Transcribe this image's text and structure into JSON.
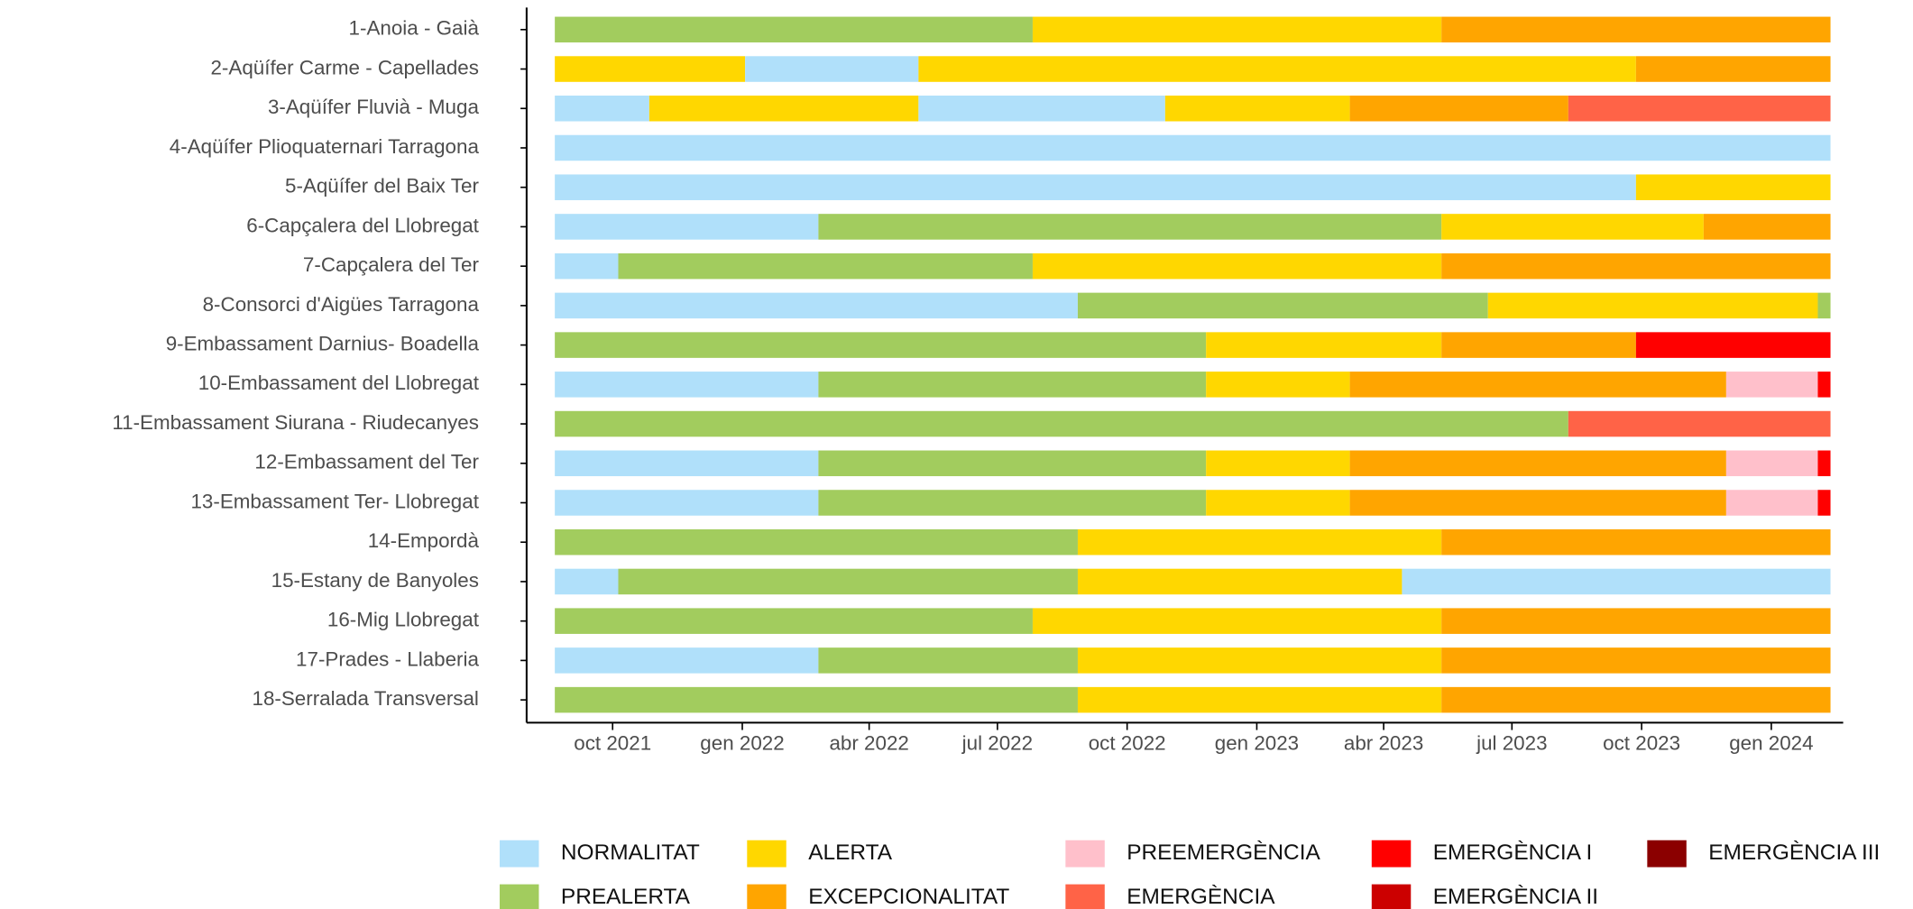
{
  "chart_data": {
    "type": "timeline",
    "states": [
      {
        "name": "NORMALITAT",
        "color": "#b0e0fa"
      },
      {
        "name": "PREALERTA",
        "color": "#a2cc5e"
      },
      {
        "name": "ALERTA",
        "color": "#ffd700"
      },
      {
        "name": "EXCEPCIONALITAT",
        "color": "#ffa500"
      },
      {
        "name": "PREEMERGÈNCIA",
        "color": "#ffc0cb"
      },
      {
        "name": "EMERGÈNCIA",
        "color": "#ff6347"
      },
      {
        "name": "EMERGÈNCIA I",
        "color": "#ff0000"
      },
      {
        "name": "EMERGÈNCIA II",
        "color": "#cc0000"
      },
      {
        "name": "EMERGÈNCIA III",
        "color": "#8b0000"
      }
    ],
    "xlim": [
      "2021-08-01",
      "2024-02-21"
    ],
    "xticks": [
      {
        "value": "2021-10-01",
        "label": "oct 2021"
      },
      {
        "value": "2022-01-01",
        "label": "gen 2022"
      },
      {
        "value": "2022-04-01",
        "label": "abr 2022"
      },
      {
        "value": "2022-07-01",
        "label": "jul 2022"
      },
      {
        "value": "2022-10-01",
        "label": "oct 2022"
      },
      {
        "value": "2023-01-01",
        "label": "gen 2023"
      },
      {
        "value": "2023-04-01",
        "label": "abr 2023"
      },
      {
        "value": "2023-07-01",
        "label": "jul 2023"
      },
      {
        "value": "2023-10-01",
        "label": "oct 2023"
      },
      {
        "value": "2024-01-01",
        "label": "gen 2024"
      }
    ],
    "rows": [
      {
        "name": "1-Anoia - Gaià",
        "segments": [
          {
            "state": "PREALERTA",
            "start": "2021-08-21",
            "end": "2022-07-26"
          },
          {
            "state": "ALERTA",
            "start": "2022-07-26",
            "end": "2023-05-12"
          },
          {
            "state": "EXCEPCIONALITAT",
            "start": "2023-05-12",
            "end": "2024-02-12"
          }
        ]
      },
      {
        "name": "2-Aqüífer Carme - Capellades",
        "segments": [
          {
            "state": "ALERTA",
            "start": "2021-08-21",
            "end": "2022-01-03"
          },
          {
            "state": "NORMALITAT",
            "start": "2022-01-03",
            "end": "2022-05-06"
          },
          {
            "state": "ALERTA",
            "start": "2022-05-06",
            "end": "2023-09-27"
          },
          {
            "state": "EXCEPCIONALITAT",
            "start": "2023-09-27",
            "end": "2024-02-12"
          }
        ]
      },
      {
        "name": "3-Aqüífer Fluvià - Muga",
        "segments": [
          {
            "state": "NORMALITAT",
            "start": "2021-08-21",
            "end": "2021-10-27"
          },
          {
            "state": "ALERTA",
            "start": "2021-10-27",
            "end": "2022-05-06"
          },
          {
            "state": "NORMALITAT",
            "start": "2022-05-06",
            "end": "2022-10-28"
          },
          {
            "state": "ALERTA",
            "start": "2022-10-28",
            "end": "2023-03-08"
          },
          {
            "state": "EXCEPCIONALITAT",
            "start": "2023-03-08",
            "end": "2023-08-10"
          },
          {
            "state": "EMERGÈNCIA",
            "start": "2023-08-10",
            "end": "2024-02-12"
          }
        ]
      },
      {
        "name": "4-Aqüífer Plioquaternari Tarragona",
        "segments": [
          {
            "state": "NORMALITAT",
            "start": "2021-08-21",
            "end": "2024-02-12"
          }
        ]
      },
      {
        "name": "5-Aqüífer del Baix Ter",
        "segments": [
          {
            "state": "NORMALITAT",
            "start": "2021-08-21",
            "end": "2023-09-27"
          },
          {
            "state": "ALERTA",
            "start": "2023-09-27",
            "end": "2024-02-12"
          }
        ]
      },
      {
        "name": "6-Capçalera del Llobregat",
        "segments": [
          {
            "state": "NORMALITAT",
            "start": "2021-08-21",
            "end": "2022-02-24"
          },
          {
            "state": "PREALERTA",
            "start": "2022-02-24",
            "end": "2023-05-12"
          },
          {
            "state": "ALERTA",
            "start": "2023-05-12",
            "end": "2023-11-14"
          },
          {
            "state": "EXCEPCIONALITAT",
            "start": "2023-11-14",
            "end": "2024-02-12"
          }
        ]
      },
      {
        "name": "7-Capçalera del Ter",
        "segments": [
          {
            "state": "NORMALITAT",
            "start": "2021-08-21",
            "end": "2021-10-05"
          },
          {
            "state": "PREALERTA",
            "start": "2021-10-05",
            "end": "2022-07-26"
          },
          {
            "state": "ALERTA",
            "start": "2022-07-26",
            "end": "2023-05-12"
          },
          {
            "state": "EXCEPCIONALITAT",
            "start": "2023-05-12",
            "end": "2024-02-12"
          }
        ]
      },
      {
        "name": "8-Consorci d'Aigües Tarragona",
        "segments": [
          {
            "state": "NORMALITAT",
            "start": "2021-08-21",
            "end": "2022-08-27"
          },
          {
            "state": "PREALERTA",
            "start": "2022-08-27",
            "end": "2023-06-14"
          },
          {
            "state": "ALERTA",
            "start": "2023-06-14",
            "end": "2024-02-03"
          },
          {
            "state": "PREALERTA",
            "start": "2024-02-03",
            "end": "2024-02-12"
          }
        ]
      },
      {
        "name": "9-Embassament Darnius- Boadella",
        "segments": [
          {
            "state": "PREALERTA",
            "start": "2021-08-21",
            "end": "2022-11-26"
          },
          {
            "state": "ALERTA",
            "start": "2022-11-26",
            "end": "2023-05-12"
          },
          {
            "state": "EXCEPCIONALITAT",
            "start": "2023-05-12",
            "end": "2023-09-27"
          },
          {
            "state": "EMERGÈNCIA I",
            "start": "2023-09-27",
            "end": "2024-02-12"
          }
        ]
      },
      {
        "name": "10-Embassament del Llobregat",
        "segments": [
          {
            "state": "NORMALITAT",
            "start": "2021-08-21",
            "end": "2022-02-24"
          },
          {
            "state": "PREALERTA",
            "start": "2022-02-24",
            "end": "2022-11-26"
          },
          {
            "state": "ALERTA",
            "start": "2022-11-26",
            "end": "2023-03-08"
          },
          {
            "state": "EXCEPCIONALITAT",
            "start": "2023-03-08",
            "end": "2023-11-30"
          },
          {
            "state": "PREEMERGÈNCIA",
            "start": "2023-11-30",
            "end": "2024-02-03"
          },
          {
            "state": "EMERGÈNCIA I",
            "start": "2024-02-03",
            "end": "2024-02-12"
          }
        ]
      },
      {
        "name": "11-Embassament Siurana - Riudecanyes",
        "segments": [
          {
            "state": "PREALERTA",
            "start": "2021-08-21",
            "end": "2023-08-10"
          },
          {
            "state": "EMERGÈNCIA",
            "start": "2023-08-10",
            "end": "2024-02-12"
          }
        ]
      },
      {
        "name": "12-Embassament del Ter",
        "segments": [
          {
            "state": "NORMALITAT",
            "start": "2021-08-21",
            "end": "2022-02-24"
          },
          {
            "state": "PREALERTA",
            "start": "2022-02-24",
            "end": "2022-11-26"
          },
          {
            "state": "ALERTA",
            "start": "2022-11-26",
            "end": "2023-03-08"
          },
          {
            "state": "EXCEPCIONALITAT",
            "start": "2023-03-08",
            "end": "2023-11-30"
          },
          {
            "state": "PREEMERGÈNCIA",
            "start": "2023-11-30",
            "end": "2024-02-03"
          },
          {
            "state": "EMERGÈNCIA I",
            "start": "2024-02-03",
            "end": "2024-02-12"
          }
        ]
      },
      {
        "name": "13-Embassament Ter- Llobregat",
        "segments": [
          {
            "state": "NORMALITAT",
            "start": "2021-08-21",
            "end": "2022-02-24"
          },
          {
            "state": "PREALERTA",
            "start": "2022-02-24",
            "end": "2022-11-26"
          },
          {
            "state": "ALERTA",
            "start": "2022-11-26",
            "end": "2023-03-08"
          },
          {
            "state": "EXCEPCIONALITAT",
            "start": "2023-03-08",
            "end": "2023-11-30"
          },
          {
            "state": "PREEMERGÈNCIA",
            "start": "2023-11-30",
            "end": "2024-02-03"
          },
          {
            "state": "EMERGÈNCIA I",
            "start": "2024-02-03",
            "end": "2024-02-12"
          }
        ]
      },
      {
        "name": "14-Empordà",
        "segments": [
          {
            "state": "PREALERTA",
            "start": "2021-08-21",
            "end": "2022-08-27"
          },
          {
            "state": "ALERTA",
            "start": "2022-08-27",
            "end": "2023-05-12"
          },
          {
            "state": "EXCEPCIONALITAT",
            "start": "2023-05-12",
            "end": "2024-02-12"
          }
        ]
      },
      {
        "name": "15-Estany de Banyoles",
        "segments": [
          {
            "state": "NORMALITAT",
            "start": "2021-08-21",
            "end": "2021-10-05"
          },
          {
            "state": "PREALERTA",
            "start": "2021-10-05",
            "end": "2022-08-27"
          },
          {
            "state": "ALERTA",
            "start": "2022-08-27",
            "end": "2023-04-14"
          },
          {
            "state": "NORMALITAT",
            "start": "2023-04-14",
            "end": "2024-02-12"
          }
        ]
      },
      {
        "name": "16-Mig Llobregat",
        "segments": [
          {
            "state": "PREALERTA",
            "start": "2021-08-21",
            "end": "2022-07-26"
          },
          {
            "state": "ALERTA",
            "start": "2022-07-26",
            "end": "2023-05-12"
          },
          {
            "state": "EXCEPCIONALITAT",
            "start": "2023-05-12",
            "end": "2024-02-12"
          }
        ]
      },
      {
        "name": "17-Prades - Llaberia",
        "segments": [
          {
            "state": "NORMALITAT",
            "start": "2021-08-21",
            "end": "2022-02-24"
          },
          {
            "state": "PREALERTA",
            "start": "2022-02-24",
            "end": "2022-08-27"
          },
          {
            "state": "ALERTA",
            "start": "2022-08-27",
            "end": "2023-05-12"
          },
          {
            "state": "EXCEPCIONALITAT",
            "start": "2023-05-12",
            "end": "2024-02-12"
          }
        ]
      },
      {
        "name": "18-Serralada Transversal",
        "segments": [
          {
            "state": "PREALERTA",
            "start": "2021-08-21",
            "end": "2022-08-27"
          },
          {
            "state": "ALERTA",
            "start": "2022-08-27",
            "end": "2023-05-12"
          },
          {
            "state": "EXCEPCIONALITAT",
            "start": "2023-05-12",
            "end": "2024-02-12"
          }
        ]
      }
    ]
  }
}
